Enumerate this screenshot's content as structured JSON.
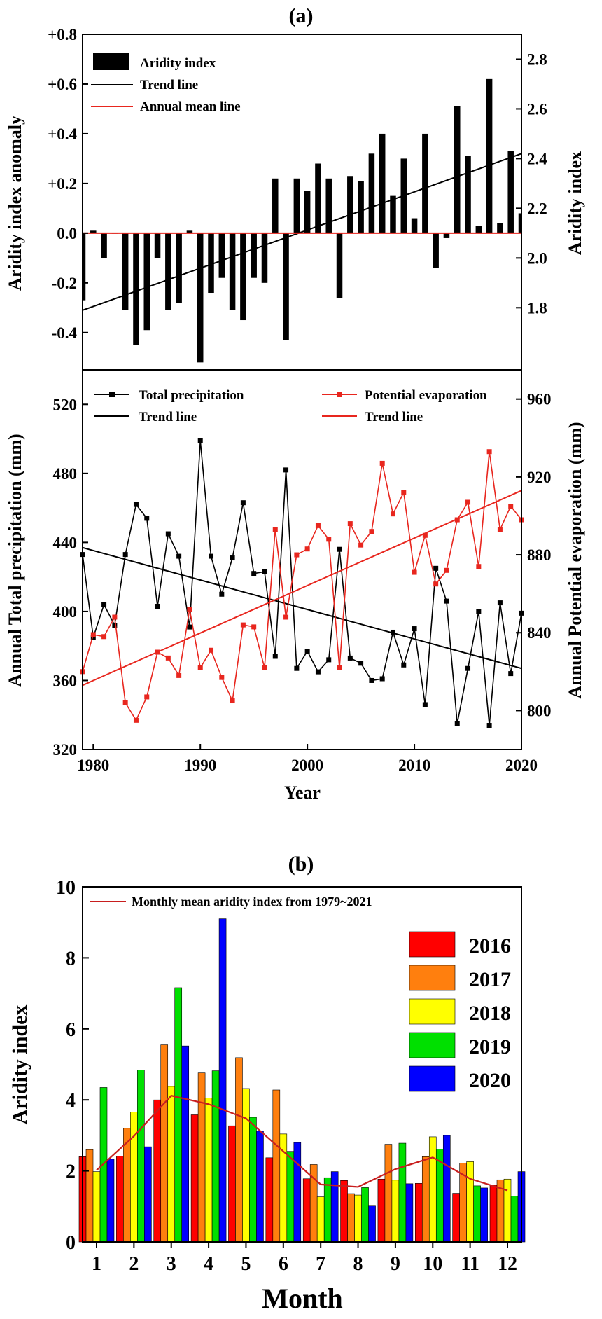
{
  "chart_data": [
    {
      "panel_label": "(a)",
      "type": "bar",
      "x": [
        1979,
        1980,
        1981,
        1982,
        1983,
        1984,
        1985,
        1986,
        1987,
        1988,
        1989,
        1990,
        1991,
        1992,
        1993,
        1994,
        1995,
        1996,
        1997,
        1998,
        1999,
        2000,
        2001,
        2002,
        2003,
        2004,
        2005,
        2006,
        2007,
        2008,
        2009,
        2010,
        2011,
        2012,
        2013,
        2014,
        2015,
        2016,
        2017,
        2018,
        2019,
        2020
      ],
      "series": [
        {
          "name": "Aridity index",
          "kind": "bar",
          "color": "#000000",
          "values": [
            -0.27,
            0.01,
            -0.1,
            0.0,
            -0.31,
            -0.45,
            -0.39,
            -0.1,
            -0.31,
            -0.28,
            0.01,
            -0.52,
            -0.24,
            -0.18,
            -0.31,
            -0.35,
            -0.18,
            -0.2,
            0.22,
            -0.43,
            0.22,
            0.17,
            0.28,
            0.22,
            -0.26,
            0.23,
            0.21,
            0.32,
            0.4,
            0.15,
            0.3,
            0.06,
            0.4,
            -0.14,
            -0.02,
            0.51,
            0.31,
            0.03,
            0.62,
            0.04,
            0.33,
            0.08
          ]
        },
        {
          "name": "Trend line",
          "kind": "trend",
          "color": "#000000",
          "start": [
            1979,
            -0.31
          ],
          "end": [
            2020,
            0.32
          ]
        },
        {
          "name": "Annual mean line",
          "kind": "hline",
          "color": "#e8261e",
          "value": 0.0
        }
      ],
      "ylabel": "Aridity index anomaly",
      "y2label": "Aridity index",
      "ylim": [
        -0.55,
        0.8
      ],
      "yticks": [
        "+0.8",
        "+0.6",
        "+0.4",
        "+0.2",
        "0.0",
        "-0.2",
        "-0.4"
      ],
      "ytick_values": [
        0.8,
        0.6,
        0.4,
        0.2,
        0.0,
        -0.2,
        -0.4
      ],
      "y2ticks": [
        "2.8",
        "2.6",
        "2.4",
        "2.2",
        "2.0",
        "1.8"
      ],
      "y2tick_values": [
        2.8,
        2.6,
        2.4,
        2.2,
        2.0,
        1.8
      ],
      "y2_offset": 2.1,
      "legend": "top-left"
    },
    {
      "type": "line",
      "x": [
        1979,
        1980,
        1981,
        1982,
        1983,
        1984,
        1985,
        1986,
        1987,
        1988,
        1989,
        1990,
        1991,
        1992,
        1993,
        1994,
        1995,
        1996,
        1997,
        1998,
        1999,
        2000,
        2001,
        2002,
        2003,
        2004,
        2005,
        2006,
        2007,
        2008,
        2009,
        2010,
        2011,
        2012,
        2013,
        2014,
        2015,
        2016,
        2017,
        2018,
        2019,
        2020
      ],
      "series": [
        {
          "name": "Total precipitation",
          "axis": "left",
          "color": "#000000",
          "values": [
            433,
            385,
            404,
            392,
            433,
            462,
            454,
            403,
            445,
            432,
            391,
            499,
            432,
            410,
            431,
            463,
            422,
            423,
            374,
            482,
            367,
            377,
            365,
            372,
            436,
            373,
            370,
            360,
            361,
            388,
            369,
            390,
            346,
            425,
            406,
            335,
            367,
            400,
            334,
            405,
            364,
            399
          ],
          "trend": [
            437,
            367
          ]
        },
        {
          "name": "Potential evaporation",
          "axis": "right",
          "color": "#e8261e",
          "values": [
            820,
            839,
            838,
            848,
            804,
            795,
            807,
            830,
            827,
            818,
            852,
            822,
            831,
            817,
            805,
            844,
            843,
            822,
            893,
            848,
            880,
            883,
            895,
            888,
            822,
            896,
            885,
            892,
            927,
            901,
            912,
            871,
            890,
            865,
            872,
            898,
            907,
            874,
            933,
            893,
            905,
            898
          ],
          "trend": [
            813,
            913
          ]
        }
      ],
      "legend_labels": [
        "Total precipitation",
        "Trend line",
        "Potential evaporation",
        "Trend line"
      ],
      "xlabel": "Year",
      "ylabel": "Annual Total precipitation (mm)",
      "y2label": "Annual Potential evaporation (mm)",
      "xlim": [
        1979,
        2020
      ],
      "xticks": [
        "1980",
        "1990",
        "2000",
        "2010",
        "2020"
      ],
      "xtick_values": [
        1980,
        1990,
        2000,
        2010,
        2020
      ],
      "ylim": [
        320,
        540
      ],
      "yticks": [
        "520",
        "480",
        "440",
        "400",
        "360",
        "320"
      ],
      "ytick_values": [
        520,
        480,
        440,
        400,
        360,
        320
      ],
      "y2lim": [
        780,
        975
      ],
      "y2ticks": [
        "960",
        "920",
        "880",
        "840",
        "800"
      ],
      "y2tick_values": [
        960,
        920,
        880,
        840,
        800
      ]
    },
    {
      "panel_label": "(b)",
      "type": "bar",
      "categories": [
        "1",
        "2",
        "3",
        "4",
        "5",
        "6",
        "7",
        "8",
        "9",
        "10",
        "11",
        "12"
      ],
      "series": [
        {
          "name": "2016",
          "color": "#ff0000",
          "values": [
            2.4,
            2.42,
            4.0,
            3.58,
            3.27,
            2.37,
            1.78,
            1.73,
            1.77,
            1.65,
            1.37,
            1.6
          ]
        },
        {
          "name": "2017",
          "color": "#ff7f0e",
          "values": [
            2.6,
            3.2,
            5.55,
            4.76,
            5.19,
            4.28,
            2.18,
            1.36,
            2.75,
            2.4,
            2.22,
            1.75
          ]
        },
        {
          "name": "2018",
          "color": "#ffff00",
          "values": [
            1.98,
            3.66,
            4.38,
            4.05,
            4.32,
            3.04,
            1.27,
            1.32,
            1.74,
            2.96,
            2.26,
            1.77
          ]
        },
        {
          "name": "2019",
          "color": "#00e000",
          "values": [
            4.35,
            4.84,
            7.16,
            4.82,
            3.51,
            2.55,
            1.81,
            1.53,
            2.78,
            2.61,
            1.58,
            1.29
          ]
        },
        {
          "name": "2020",
          "color": "#0000ff",
          "values": [
            2.33,
            2.68,
            5.52,
            9.1,
            3.12,
            2.8,
            1.98,
            1.03,
            1.64,
            3.0,
            1.52,
            1.98
          ]
        }
      ],
      "mean_line": {
        "name": "Monthly mean aridity index from 1979~2021",
        "color": "#c81e1e",
        "values": [
          2.02,
          2.98,
          4.12,
          3.88,
          3.48,
          2.55,
          1.62,
          1.55,
          2.05,
          2.38,
          1.78,
          1.45
        ]
      },
      "xlabel": "Month",
      "ylabel": "Aridity index",
      "ylim": [
        0,
        10
      ],
      "yticks": [
        "0",
        "2",
        "4",
        "6",
        "8",
        "10"
      ],
      "ytick_values": [
        0,
        2,
        4,
        6,
        8,
        10
      ],
      "legend": "top-right"
    }
  ]
}
